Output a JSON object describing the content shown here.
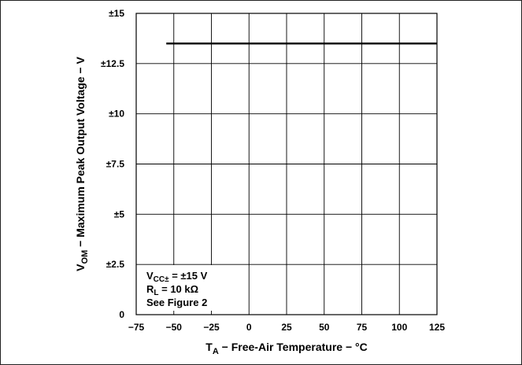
{
  "chart_data": {
    "type": "line",
    "title": "",
    "xlabel": {
      "prefix": "T",
      "sub": "A",
      "rest": " − Free-Air Temperature − °C"
    },
    "ylabel": {
      "prefix": "V",
      "sub": "OM",
      "rest": " − Maximum Peak Output Voltage − V"
    },
    "xlim": [
      -75,
      125
    ],
    "ylim": [
      0,
      15
    ],
    "x_ticks": [
      -75,
      -50,
      -25,
      0,
      25,
      50,
      75,
      100,
      125
    ],
    "x_tick_labels": [
      "−75",
      "−50",
      "−25",
      "0",
      "25",
      "50",
      "75",
      "100",
      "125"
    ],
    "y_ticks": [
      0,
      2.5,
      5,
      7.5,
      10,
      12.5,
      15
    ],
    "y_tick_labels": [
      "0",
      "±2.5",
      "±5",
      "±7.5",
      "±10",
      "±12.5",
      "±15"
    ],
    "grid": true,
    "series": [
      {
        "x": [
          -55,
          125
        ],
        "y": [
          13.5,
          13.5
        ],
        "color": "#000000"
      }
    ],
    "annotations": [
      {
        "prefix": "V",
        "sub": "CC±",
        "rest": " = ±15 V"
      },
      {
        "prefix": "R",
        "sub": "L",
        "rest": " = 10 kΩ"
      },
      {
        "prefix": "",
        "sub": "",
        "rest": "See Figure 2"
      }
    ]
  }
}
